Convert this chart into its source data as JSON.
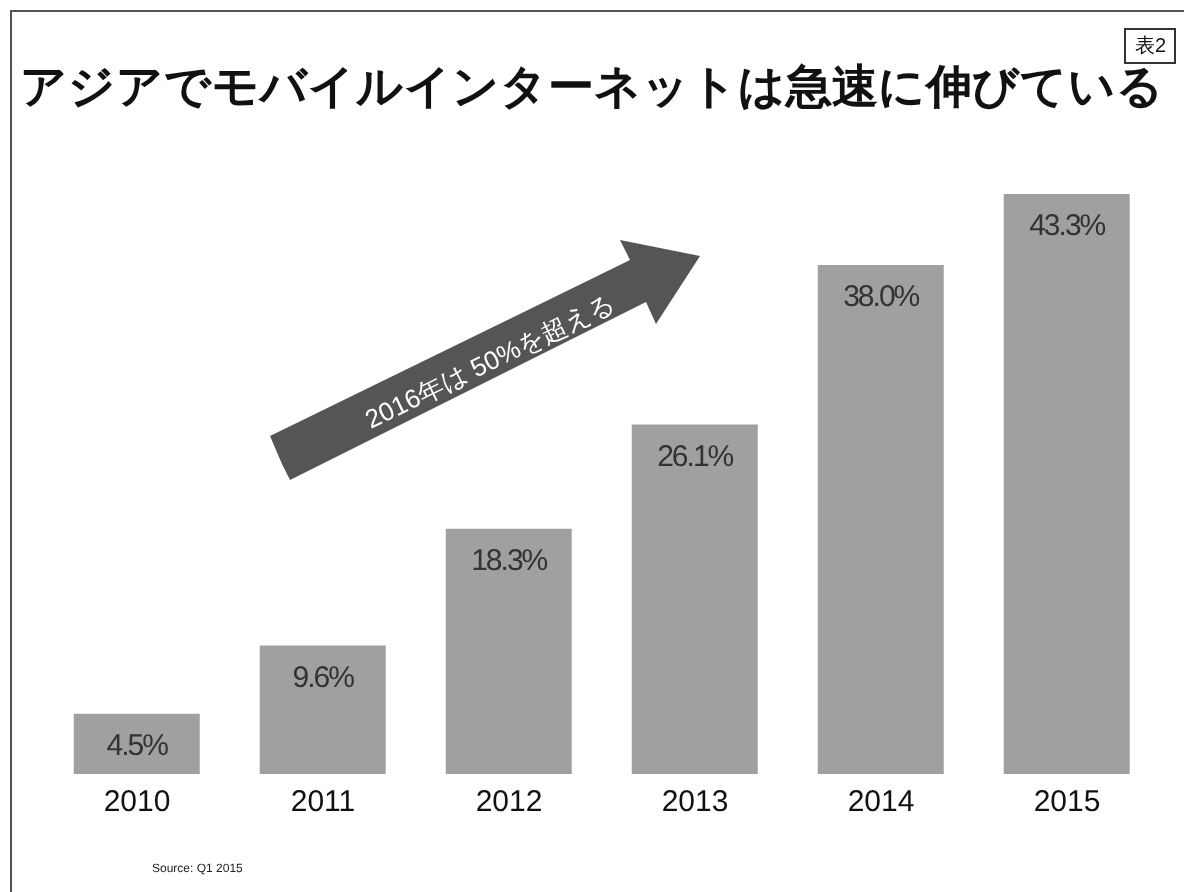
{
  "chart_data": {
    "type": "bar",
    "title": "アジアでモバイルインターネットは急速に伸びている",
    "categories": [
      "2010",
      "2011",
      "2012",
      "2013",
      "2014",
      "2015"
    ],
    "values": [
      4.5,
      9.6,
      18.3,
      26.1,
      38.0,
      43.3
    ],
    "value_labels": [
      "4.5%",
      "9.6%",
      "18.3%",
      "26.1%",
      "38.0%",
      "43.3%"
    ],
    "color": "#a0a0a0",
    "grid": false,
    "legend": false,
    "annotations": [
      "表2",
      "2016年は 50%を超える",
      "Source: Q1 2015"
    ]
  }
}
